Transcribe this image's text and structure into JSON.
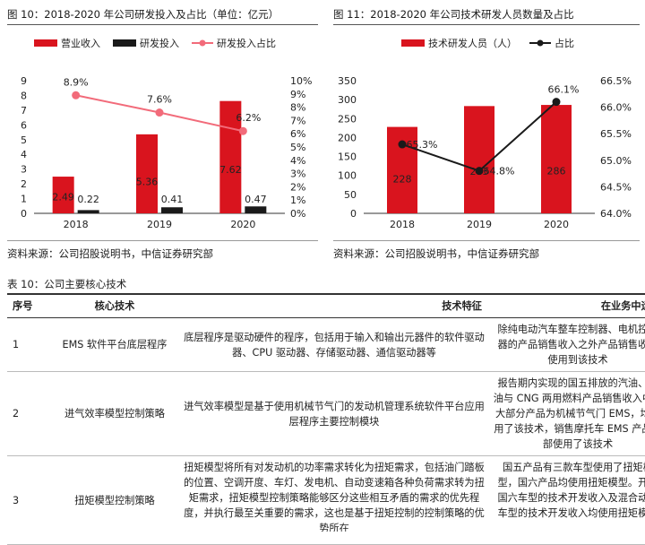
{
  "figure10": {
    "title": "图 10：2018-2020 年公司研发投入及占比（单位：亿元）",
    "source": "资料来源：公司招股说明书，中信证券研究部",
    "chart_data": {
      "type": "bar",
      "categories": [
        "2018",
        "2019",
        "2020"
      ],
      "series": [
        {
          "name": "营业收入",
          "values": [
            2.49,
            5.36,
            7.62
          ],
          "labels": [
            "2.49",
            "5.36",
            "7.62"
          ],
          "color": "#d9141e"
        },
        {
          "name": "研发投入",
          "values": [
            0.22,
            0.41,
            0.47
          ],
          "labels": [
            "0.22",
            "0.41",
            "0.47"
          ],
          "color": "#1a1a1a"
        },
        {
          "name": "研发投入占比",
          "type": "line",
          "axis": "right",
          "values": [
            8.9,
            7.6,
            6.2
          ],
          "labels": [
            "8.9%",
            "7.6%",
            "6.2%"
          ],
          "color": "#f26b7a"
        }
      ],
      "ylim": [
        0,
        9
      ],
      "y_ticks": [
        "0",
        "1",
        "2",
        "3",
        "4",
        "5",
        "6",
        "7",
        "8",
        "9"
      ],
      "y2lim": [
        0,
        10
      ],
      "y2_ticks": [
        "0%",
        "1%",
        "2%",
        "3%",
        "4%",
        "5%",
        "6%",
        "7%",
        "8%",
        "9%",
        "10%"
      ],
      "legend": "top",
      "grid": false
    }
  },
  "figure11": {
    "title": "图 11：2018-2020 年公司技术研发人员数量及占比",
    "source": "资料来源：公司招股说明书，中信证券研究部",
    "chart_data": {
      "type": "bar",
      "categories": [
        "2018",
        "2019",
        "2020"
      ],
      "series": [
        {
          "name": "技术研发人员（人）",
          "values": [
            228,
            283,
            286
          ],
          "labels": [
            "228",
            "283",
            "286"
          ],
          "color": "#d9141e"
        },
        {
          "name": "占比",
          "type": "line",
          "axis": "right",
          "values": [
            65.3,
            64.8,
            66.1
          ],
          "labels": [
            "65.3%",
            "64.8%",
            "66.1%"
          ],
          "color": "#1a1a1a"
        }
      ],
      "ylim": [
        0,
        350
      ],
      "y_ticks": [
        "0",
        "50",
        "100",
        "150",
        "200",
        "250",
        "300",
        "350"
      ],
      "y2lim": [
        64.0,
        66.5
      ],
      "y2_ticks": [
        "64.0%",
        "64.5%",
        "65.0%",
        "65.5%",
        "66.0%",
        "66.5%"
      ],
      "legend": "top",
      "grid": false
    }
  },
  "table10": {
    "title": "表 10：公司主要核心技术",
    "headers": [
      "序号",
      "核心技术",
      "技术特征",
      "在业务中运用"
    ],
    "rows": [
      {
        "no": "1",
        "tech": "EMS 软件平台底层程序",
        "feature": "底层程序是驱动硬件的程序，包括用于输入和输出元器件的软件驱动器、CPU 驱动器、存储驱动器、通信驱动器等",
        "application": "除纯电动汽车整车控制器、电机控制器的产品销售收入之外产品销售收入使用到该技术"
      },
      {
        "no": "2",
        "tech": "进气效率模型控制策略",
        "feature": "进气效率模型是基于使用机械节气门的发动机管理系统软件平台应用层程序主要控制模块",
        "application": "报告期内实现的国五排放的汽油、汽油与 CNG 两用燃料产品销售收入中绝大部分产品为机械节气门 EMS，均使用了该技术，销售摩托车 EMS 产品全部使用了该技术"
      },
      {
        "no": "3",
        "tech": "扭矩模型控制策略",
        "feature": "扭矩模型将所有对发动机的功率需求转化为扭矩需求，包括油门踏板的位置、空调开度、车灯、发电机、自动变速箱各种负荷需求转为扭矩需求，扭矩模型控制策略能够区分这些相互矛盾的需求的优先程度，并执行最至关重要的需求，这也是基于扭矩控制的控制策略的优势所在",
        "application": "国五产品有三款车型使用了扭矩模型，国六产品均使用扭矩模型。开发国六车型的技术开发收入及混合动力车型的技术开发收入均使用扭矩模型"
      }
    ]
  }
}
